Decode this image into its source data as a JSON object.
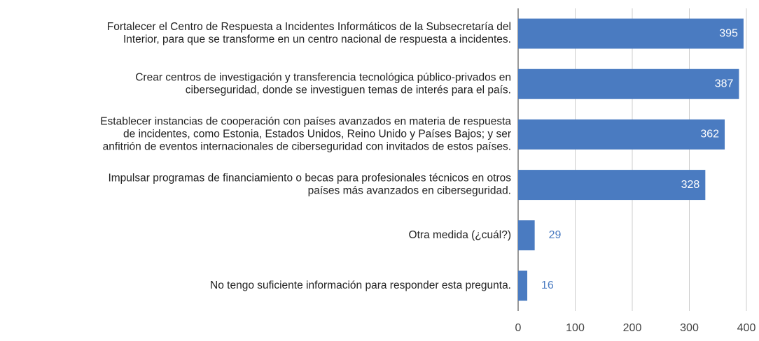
{
  "chart_data": {
    "type": "bar",
    "orientation": "horizontal",
    "categories": [
      [
        "Fortalecer el Centro de Respuesta a Incidentes Informáticos de la Subsecretaría del",
        "Interior, para que se transforme en un centro nacional de respuesta a incidentes."
      ],
      [
        "Crear centros de investigación y transferencia tecnológica público-privados en",
        "ciberseguridad, donde se investiguen temas de interés para el país."
      ],
      [
        "Establecer instancias de cooperación con países avanzados en materia de respuesta",
        "de incidentes, como Estonia, Estados Unidos, Reino Unido y Países Bajos; y ser",
        "anfitrión de eventos internacionales de ciberseguridad con invitados de estos países."
      ],
      [
        "Impulsar programas de financiamiento o becas para profesionales técnicos en otros",
        "países más avanzados en ciberseguridad."
      ],
      [
        "Otra medida (¿cuál?)"
      ],
      [
        "No tengo suficiente información para responder esta pregunta."
      ]
    ],
    "values": [
      395,
      387,
      362,
      328,
      29,
      16
    ],
    "color": "#4a7bc1",
    "xlim": [
      0,
      400
    ],
    "xticks": [
      0,
      100,
      200,
      300,
      400
    ],
    "grid": true
  }
}
